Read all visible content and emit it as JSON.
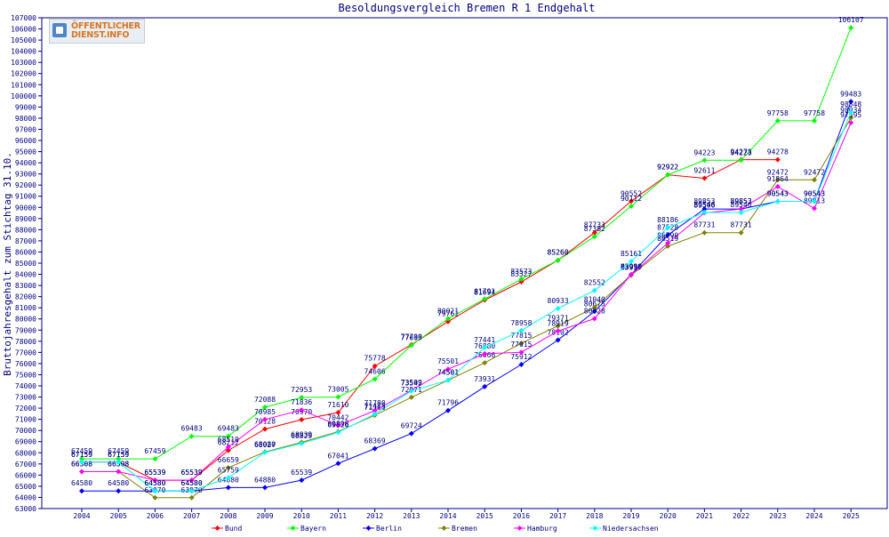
{
  "chart_data": {
    "type": "line",
    "title": "Besoldungsvergleich Bremen R 1 Endgehalt",
    "xlabel": "",
    "ylabel": "Bruttojahresgehalt zum Stichtag 31.10.",
    "categories": [
      "2004",
      "2005",
      "2006",
      "2007",
      "2008",
      "2009",
      "2010",
      "2011",
      "2012",
      "2013",
      "2014",
      "2015",
      "2016",
      "2017",
      "2018",
      "2019",
      "2020",
      "2021",
      "2022",
      "2023",
      "2024",
      "2025"
    ],
    "ylim": [
      63000,
      107000
    ],
    "ytick_step": 1000,
    "grid": false,
    "legend_position": "bottom",
    "series": [
      {
        "name": "Bund",
        "color": "#ff0000",
        "values": [
          67159,
          67159,
          65539,
          65539,
          68212,
          70128,
          70970,
          71610,
          75778,
          77700,
          79761,
          81694,
          83327,
          85260,
          87733,
          90552,
          92922,
          92611,
          94278,
          94278,
          null,
          null
        ]
      },
      {
        "name": "Bayern",
        "color": "#00ff00",
        "values": [
          67459,
          67459,
          67459,
          69483,
          69483,
          72088,
          72953,
          73005,
          74606,
          77633,
          80021,
          81791,
          83573,
          85260,
          87382,
          90112,
          92922,
          94223,
          94223,
          97758,
          97758,
          106107
        ]
      },
      {
        "name": "Berlin",
        "color": "#0000ff",
        "values": [
          64580,
          64580,
          64580,
          64580,
          64880,
          64880,
          65539,
          67041,
          68369,
          69724,
          71796,
          73931,
          75912,
          78102,
          80675,
          83990,
          87528,
          89853,
          89853,
          90543,
          90543,
          99483
        ]
      },
      {
        "name": "Bremen",
        "color": "#808000",
        "values": [
          66308,
          66308,
          63970,
          63970,
          66659,
          68080,
          68939,
          69898,
          71363,
          72971,
          74501,
          76066,
          77815,
          79371,
          81040,
          83917,
          86519,
          87731,
          87731,
          92472,
          92472,
          98034
        ]
      },
      {
        "name": "Hamburg",
        "color": "#ff00ff",
        "values": [
          66308,
          66308,
          65539,
          65539,
          68510,
          70985,
          71836,
          70442,
          71780,
          73599,
          75501,
          76880,
          77015,
          78919,
          80028,
          83990,
          86790,
          89500,
          89853,
          91864,
          89913,
          97595
        ]
      },
      {
        "name": "Niedersachsen",
        "color": "#00ffff",
        "values": [
          67159,
          67159,
          64580,
          64580,
          65759,
          68027,
          68829,
          69826,
          71475,
          73542,
          74501,
          77441,
          78958,
          80933,
          82552,
          85161,
          88186,
          89546,
          89546,
          90543,
          90543,
          98548
        ]
      }
    ]
  }
}
